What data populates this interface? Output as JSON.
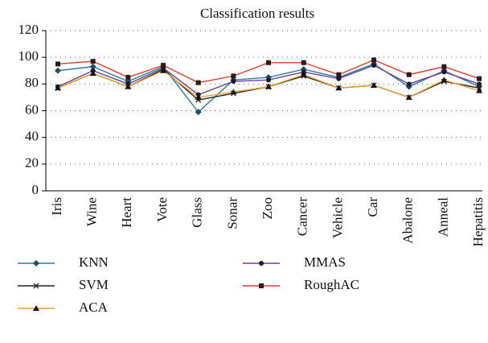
{
  "chart_data": {
    "type": "line",
    "title": "Classification results",
    "categories": [
      "Iris",
      "Wine",
      "Heart",
      "Vote",
      "Glass",
      "Sonar",
      "Zoo",
      "Cancer",
      "Vehicle",
      "Car",
      "Abalone",
      "Anneal",
      "Hepatitis"
    ],
    "series": [
      {
        "name": "KNN",
        "color": "#2a7f9e",
        "marker": "diamond",
        "values": [
          90,
          93,
          82,
          93,
          59,
          83,
          85,
          91,
          85,
          95,
          78,
          90,
          78
        ]
      },
      {
        "name": "MMAS",
        "color": "#6b3fa0",
        "marker": "circle",
        "values": [
          78,
          90,
          80,
          92,
          72,
          82,
          83,
          89,
          84,
          94,
          80,
          89,
          80
        ]
      },
      {
        "name": "SVM",
        "color": "#222222",
        "marker": "x",
        "values": [
          77,
          88,
          78,
          91,
          68,
          73,
          78,
          86,
          77,
          79,
          70,
          82,
          77
        ]
      },
      {
        "name": "RoughAC",
        "color": "#e23b2a",
        "marker": "square",
        "values": [
          95,
          97,
          85,
          94,
          81,
          86,
          96,
          96,
          87,
          98,
          87,
          93,
          84
        ]
      },
      {
        "name": "ACA",
        "color": "#f0a030",
        "marker": "triangle",
        "values": [
          77,
          88,
          78,
          90,
          70,
          74,
          78,
          87,
          77,
          79,
          70,
          83,
          75
        ]
      }
    ],
    "ylim": [
      0,
      120
    ],
    "yticks": [
      0,
      20,
      40,
      60,
      80,
      100,
      120
    ],
    "grid": true
  }
}
